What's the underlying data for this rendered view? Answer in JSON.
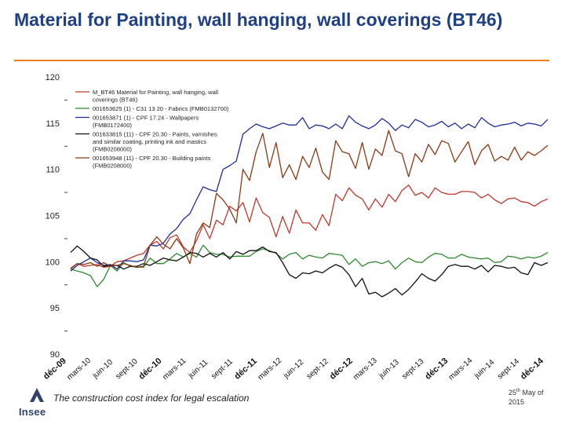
{
  "slide": {
    "title": "Material for Painting, wall hanging, wall coverings (BT46)",
    "footer": "The construction cost index for legal escalation",
    "date_day": "25",
    "date_sup": "th",
    "date_rest": " May of 2015",
    "logo_text": "Insee"
  },
  "colors": {
    "title": "#1f3f86",
    "rule": "#f07f1f"
  },
  "chart_data": {
    "type": "line",
    "title": "",
    "xlabel": "",
    "ylabel": "",
    "ylim": [
      90,
      120
    ],
    "yticks": [
      90,
      95,
      100,
      105,
      110,
      115,
      120
    ],
    "x_tick_labels": [
      "déc-09",
      "mars-10",
      "juin-10",
      "sept-10",
      "déc-10",
      "mars-11",
      "juin-11",
      "sept-11",
      "déc-11",
      "mars-12",
      "juin-12",
      "sept-12",
      "déc-12",
      "mars-13",
      "juin-13",
      "sept-13",
      "déc-13",
      "mars-14",
      "juin-14",
      "sept-14",
      "déc-14"
    ],
    "bold_ticks": [
      "déc-09",
      "déc-10",
      "déc-11",
      "déc-12",
      "déc-13",
      "déc-14"
    ],
    "legend_position": "top-left",
    "series": [
      {
        "name": "M_BT46 Material for Painting, wall hanging, wall coverings (BT46)",
        "color": "#c0392b",
        "values": [
          99.2,
          99.8,
          99.5,
          99.6,
          99.7,
          99.4,
          99.5,
          100.0,
          100.1,
          100.4,
          100.7,
          100.9,
          101.8,
          102.2,
          101.4,
          102.6,
          102.9,
          101.6,
          101.0,
          102.3,
          104.0,
          102.5,
          104.5,
          104.0,
          106.0,
          105.5,
          106.4,
          104.3,
          106.9,
          105.3,
          104.8,
          102.7,
          104.9,
          103.1,
          105.6,
          104.2,
          104.2,
          103.4,
          105.1,
          103.9,
          107.3,
          106.6,
          108.0,
          107.2,
          106.8,
          105.6,
          106.8,
          105.9,
          107.3,
          106.5,
          107.7,
          108.3,
          107.2,
          107.5,
          106.9,
          108.0,
          107.5,
          107.3,
          107.3,
          107.6,
          107.6,
          107.5,
          106.9,
          107.3,
          106.7,
          106.3,
          106.8,
          106.9,
          106.5,
          106.4,
          106.0,
          106.5,
          106.8
        ]
      },
      {
        "name": "001653625 (1) - C31 13 20 - Fabrics (FMB0132700)",
        "color": "#2e8b2e",
        "values": [
          99.2,
          99.0,
          98.8,
          98.5,
          97.3,
          98.1,
          99.6,
          99.0,
          99.9,
          99.5,
          99.4,
          99.4,
          100.4,
          99.8,
          99.8,
          100.3,
          100.9,
          100.5,
          100.9,
          100.5,
          101.8,
          101.0,
          100.8,
          100.8,
          100.5,
          100.6,
          100.6,
          100.6,
          101.1,
          101.4,
          101.2,
          100.9,
          100.3,
          100.8,
          101.0,
          100.3,
          100.7,
          100.5,
          100.4,
          100.9,
          100.8,
          100.7,
          99.7,
          100.3,
          99.5,
          99.9,
          100.0,
          99.8,
          100.1,
          99.2,
          99.9,
          100.4,
          100.0,
          99.9,
          100.5,
          100.9,
          100.8,
          100.4,
          100.4,
          100.8,
          100.5,
          100.4,
          100.3,
          100.4,
          99.9,
          100.0,
          100.6,
          100.5,
          100.3,
          100.5,
          100.4,
          100.6,
          101.0
        ]
      },
      {
        "name": "001653871 (1) - CPF 17.24 - Wallpapers (FMB0172400)",
        "color": "#1f2d9c",
        "values": [
          99.0,
          99.6,
          100.0,
          100.4,
          99.9,
          99.6,
          99.7,
          99.2,
          100.1,
          100.1,
          100.0,
          100.2,
          101.8,
          101.7,
          102.0,
          103.0,
          103.6,
          104.6,
          105.2,
          106.7,
          108.1,
          107.8,
          107.6,
          110.0,
          110.4,
          110.9,
          113.8,
          114.4,
          114.9,
          114.6,
          114.4,
          114.7,
          115.0,
          114.8,
          114.8,
          115.6,
          114.4,
          114.8,
          114.7,
          114.4,
          114.9,
          114.4,
          115.8,
          115.1,
          114.7,
          114.4,
          114.8,
          115.5,
          115.0,
          114.2,
          114.8,
          114.5,
          115.4,
          115.1,
          114.6,
          114.8,
          115.2,
          114.6,
          115.0,
          114.4,
          114.9,
          114.5,
          115.6,
          115.0,
          114.6,
          114.8,
          114.9,
          115.1,
          114.7,
          115.0,
          114.9,
          114.7,
          115.4
        ]
      },
      {
        "name": "001633815 (11) - CPF 20.30 - Paints, varnishes and similar coating, printing ink and mastics (FMB0208000)",
        "color": "#111111",
        "values": [
          101.0,
          101.7,
          101.1,
          100.4,
          100.2,
          99.5,
          99.6,
          99.6,
          99.2,
          99.5,
          99.5,
          99.8,
          99.6,
          100.0,
          100.4,
          100.2,
          100.1,
          100.5,
          101.0,
          100.9,
          100.5,
          100.9,
          100.5,
          101.0,
          100.3,
          101.1,
          100.8,
          101.2,
          101.2,
          101.6,
          101.1,
          101.0,
          99.9,
          98.6,
          98.2,
          98.8,
          98.7,
          99.0,
          98.8,
          99.3,
          99.7,
          99.4,
          98.6,
          97.3,
          98.2,
          96.5,
          96.7,
          96.2,
          96.6,
          97.1,
          96.4,
          97.0,
          97.8,
          98.7,
          98.2,
          97.9,
          98.6,
          99.5,
          99.7,
          99.5,
          99.5,
          99.2,
          99.6,
          98.9,
          99.6,
          99.5,
          99.3,
          99.4,
          98.8,
          98.6,
          99.9,
          99.6,
          99.9
        ]
      },
      {
        "name": "001653948 (11) - CPF 20.30 - Building paints (FMB0208000)",
        "color": "#8b3a14",
        "values": [
          99.3,
          99.8,
          99.7,
          99.9,
          99.5,
          99.9,
          99.5,
          99.6,
          99.8,
          99.6,
          99.4,
          99.5,
          101.8,
          102.7,
          101.9,
          101.4,
          102.5,
          101.5,
          99.8,
          103.0,
          104.2,
          103.7,
          107.4,
          106.7,
          105.7,
          104.2,
          110.0,
          108.8,
          111.9,
          113.9,
          110.2,
          112.9,
          109.1,
          110.5,
          108.9,
          111.4,
          110.2,
          112.3,
          109.7,
          108.9,
          113.1,
          111.9,
          111.7,
          110.1,
          112.9,
          110.0,
          112.2,
          111.5,
          114.2,
          112.0,
          111.7,
          109.2,
          111.7,
          110.8,
          112.7,
          111.6,
          113.1,
          112.8,
          110.8,
          111.9,
          113.0,
          110.5,
          112.0,
          112.7,
          110.9,
          111.4,
          111.0,
          112.4,
          111.0,
          111.9,
          111.5,
          112.0,
          112.6
        ]
      }
    ]
  }
}
